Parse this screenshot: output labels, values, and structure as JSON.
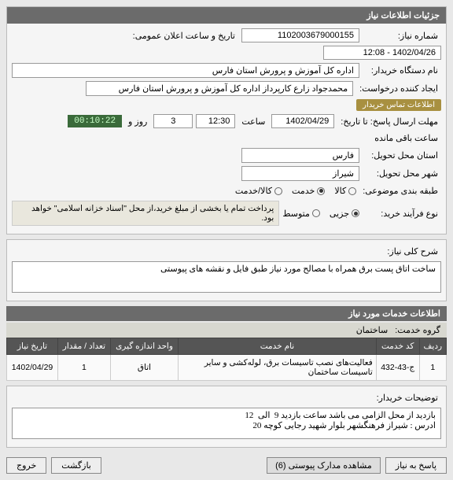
{
  "header": {
    "title": "جزئیات اطلاعات نیاز"
  },
  "basic": {
    "need_no_label": "شماره نیاز:",
    "need_no": "1102003679000155",
    "announce_label": "تاریخ و ساعت اعلان عمومی:",
    "announce_value": "1402/04/26 - 12:08",
    "buyer_org_label": "نام دستگاه خریدار:",
    "buyer_org": "اداره کل آموزش و پرورش استان فارس",
    "requester_label": "ایجاد کننده درخواست:",
    "requester": "محمدجواد زارع کارپرداز اداره کل آموزش و پرورش استان فارس",
    "contact_badge": "اطلاعات تماس خریدار",
    "deadline_label": "مهلت ارسال پاسخ: تا تاریخ:",
    "deadline_date": "1402/04/29",
    "time_label": "ساعت",
    "deadline_time": "12:30",
    "days_label": "روز و",
    "days_left": "3",
    "countdown": "00:10:22",
    "remaining_label": "ساعت باقی مانده",
    "province_label": "استان محل تحویل:",
    "province": "فارس",
    "city_label": "شهر محل تحویل:",
    "city": "شیراز",
    "category_label": "طبقه بندی موضوعی:",
    "cat_goods": "کالا",
    "cat_service": "خدمت",
    "cat_both": "کالا/خدمت",
    "purchase_type_label": "نوع فرآیند خرید:",
    "pt_minor": "جزیی",
    "pt_medium": "متوسط",
    "purchase_note": "پرداخت تمام یا بخشی از مبلغ خرید،از محل \"اسناد خزانه اسلامی\" خواهد بود."
  },
  "desc": {
    "label": "شرح کلی نیاز:",
    "text": "ساخت اتاق پست برق همراه با مصالح مورد نیاز طبق فایل و نقشه های پیوستی"
  },
  "services": {
    "section": "اطلاعات خدمات مورد نیاز",
    "group_label": "گروه خدمت:",
    "group_value": "ساختمان",
    "columns": {
      "row": "ردیف",
      "code": "کد خدمت",
      "name": "نام خدمت",
      "unit": "واحد اندازه گیری",
      "qty": "تعداد / مقدار",
      "date": "تاریخ نیاز"
    },
    "rows": [
      {
        "row": "1",
        "code": "ج-43-432",
        "name": "فعالیت‌های نصب تاسیسات برق، لوله‌کشی و سایر تاسیسات ساختمان",
        "unit": "اتاق",
        "qty": "1",
        "date": "1402/04/29"
      }
    ]
  },
  "buyer_notes": {
    "label": "توضیحات خریدار:",
    "text": "بازدید از محل الزامی می باشد ساعت بازدید 9  الی  12\nادرس : شیراز فرهنگشهر بلوار شهید رجایی کوچه 20"
  },
  "footer": {
    "reply": "پاسخ به نیاز",
    "attachments": "مشاهده مدارک پیوستی",
    "att_count": "(6)",
    "back": "بازگشت",
    "exit": "خروج"
  }
}
